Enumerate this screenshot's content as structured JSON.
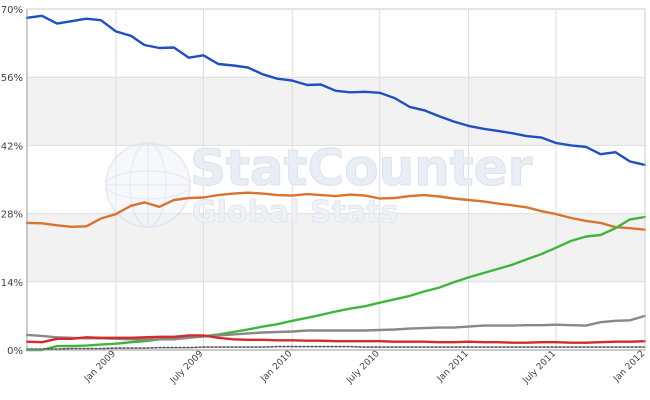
{
  "watermark": {
    "line1": "StatCounter",
    "line2": "Global Stats"
  },
  "colors": {
    "blue": "#1f4fc2",
    "orange": "#d8742f",
    "green": "#3fb63a",
    "gray": "#888888",
    "red": "#d42a2a",
    "dotted": "#555555"
  },
  "chart_data": {
    "type": "line",
    "title": "",
    "xlabel": "",
    "ylabel": "",
    "ylim": [
      0,
      70
    ],
    "y_ticks": [
      0,
      14,
      28,
      42,
      56,
      70
    ],
    "y_tick_labels": [
      "0%",
      "14%",
      "28%",
      "42%",
      "56%",
      "70%"
    ],
    "x_range": [
      "2008-07-01",
      "2012-01-01"
    ],
    "x_ticks": [
      "2009-01-01",
      "2009-07-01",
      "2010-01-01",
      "2010-07-01",
      "2011-01-01",
      "2011-07-01",
      "2012-01-01"
    ],
    "x_tick_labels": [
      "Jan 2009",
      "July 2009",
      "Jan 2010",
      "July 2010",
      "Jan 2011",
      "July 2011",
      "Jan 2012"
    ],
    "grid": true,
    "legend": "none",
    "x": [
      "2008-07-01",
      "2008-08-01",
      "2008-09-01",
      "2008-10-01",
      "2008-11-01",
      "2008-12-01",
      "2009-01-01",
      "2009-02-01",
      "2009-03-01",
      "2009-04-01",
      "2009-05-01",
      "2009-06-01",
      "2009-07-01",
      "2009-08-01",
      "2009-09-01",
      "2009-10-01",
      "2009-11-01",
      "2009-12-01",
      "2010-01-01",
      "2010-02-01",
      "2010-03-01",
      "2010-04-01",
      "2010-05-01",
      "2010-06-01",
      "2010-07-01",
      "2010-08-01",
      "2010-09-01",
      "2010-10-01",
      "2010-11-01",
      "2010-12-01",
      "2011-01-01",
      "2011-02-01",
      "2011-03-01",
      "2011-04-01",
      "2011-05-01",
      "2011-06-01",
      "2011-07-01",
      "2011-08-01",
      "2011-09-01",
      "2011-10-01",
      "2011-11-01",
      "2011-12-01",
      "2012-01-01"
    ],
    "series": [
      {
        "color_key": "blue",
        "dash": "",
        "values": [
          68.2,
          68.6,
          67.0,
          67.5,
          68.0,
          67.7,
          65.4,
          64.5,
          62.6,
          62.0,
          62.1,
          60.0,
          60.5,
          58.7,
          58.4,
          58.0,
          56.6,
          55.7,
          55.3,
          54.4,
          54.5,
          53.2,
          52.9,
          53.0,
          52.8,
          51.7,
          49.9,
          49.2,
          48.0,
          46.9,
          46.0,
          45.4,
          45.0,
          44.5,
          43.9,
          43.6,
          42.5,
          42.0,
          41.7,
          40.2,
          40.6,
          38.7,
          38.0
        ]
      },
      {
        "color_key": "orange",
        "dash": "",
        "values": [
          26.1,
          26.0,
          25.6,
          25.3,
          25.4,
          27.0,
          27.9,
          29.6,
          30.3,
          29.4,
          30.8,
          31.2,
          31.3,
          31.8,
          32.1,
          32.3,
          32.1,
          31.8,
          31.7,
          32.0,
          31.8,
          31.6,
          31.9,
          31.7,
          31.1,
          31.2,
          31.6,
          31.8,
          31.5,
          31.1,
          30.8,
          30.5,
          30.1,
          29.7,
          29.3,
          28.5,
          27.9,
          27.1,
          26.5,
          26.1,
          25.2,
          25.0,
          24.7
        ]
      },
      {
        "color_key": "green",
        "dash": "",
        "values": [
          0.0,
          0.0,
          0.8,
          0.8,
          0.9,
          1.1,
          1.3,
          1.6,
          1.8,
          2.2,
          2.5,
          2.6,
          2.8,
          3.2,
          3.7,
          4.2,
          4.8,
          5.3,
          6.0,
          6.6,
          7.2,
          7.9,
          8.5,
          9.0,
          9.7,
          10.4,
          11.1,
          12.0,
          12.8,
          13.9,
          14.9,
          15.8,
          16.6,
          17.5,
          18.6,
          19.7,
          21.0,
          22.4,
          23.3,
          23.6,
          25.0,
          26.8,
          27.3
        ]
      },
      {
        "color_key": "gray",
        "dash": "",
        "values": [
          3.1,
          2.9,
          2.6,
          2.5,
          2.4,
          2.4,
          2.3,
          2.2,
          2.2,
          2.2,
          2.2,
          2.5,
          2.8,
          3.0,
          3.2,
          3.4,
          3.6,
          3.7,
          3.8,
          4.0,
          4.0,
          4.0,
          4.0,
          4.0,
          4.1,
          4.2,
          4.4,
          4.5,
          4.6,
          4.6,
          4.8,
          5.0,
          5.0,
          5.0,
          5.1,
          5.1,
          5.2,
          5.1,
          5.0,
          5.7,
          6.0,
          6.1,
          7.0
        ]
      },
      {
        "color_key": "red",
        "dash": "",
        "values": [
          1.7,
          1.6,
          2.3,
          2.3,
          2.6,
          2.5,
          2.5,
          2.5,
          2.6,
          2.7,
          2.7,
          3.0,
          3.0,
          2.5,
          2.2,
          2.1,
          2.1,
          2.0,
          2.0,
          1.9,
          1.9,
          1.8,
          1.8,
          1.8,
          1.8,
          1.7,
          1.7,
          1.7,
          1.6,
          1.6,
          1.7,
          1.6,
          1.6,
          1.5,
          1.5,
          1.6,
          1.6,
          1.5,
          1.5,
          1.6,
          1.7,
          1.7,
          1.8
        ]
      },
      {
        "color_key": "dotted",
        "dash": "2,2",
        "values": [
          0.2,
          0.2,
          0.2,
          0.3,
          0.3,
          0.3,
          0.4,
          0.4,
          0.4,
          0.5,
          0.5,
          0.5,
          0.6,
          0.6,
          0.6,
          0.6,
          0.6,
          0.7,
          0.7,
          0.7,
          0.7,
          0.7,
          0.7,
          0.6,
          0.6,
          0.6,
          0.6,
          0.6,
          0.6,
          0.6,
          0.6,
          0.6,
          0.6,
          0.6,
          0.6,
          0.6,
          0.6,
          0.6,
          0.6,
          0.6,
          0.6,
          0.6,
          0.6
        ]
      }
    ]
  }
}
